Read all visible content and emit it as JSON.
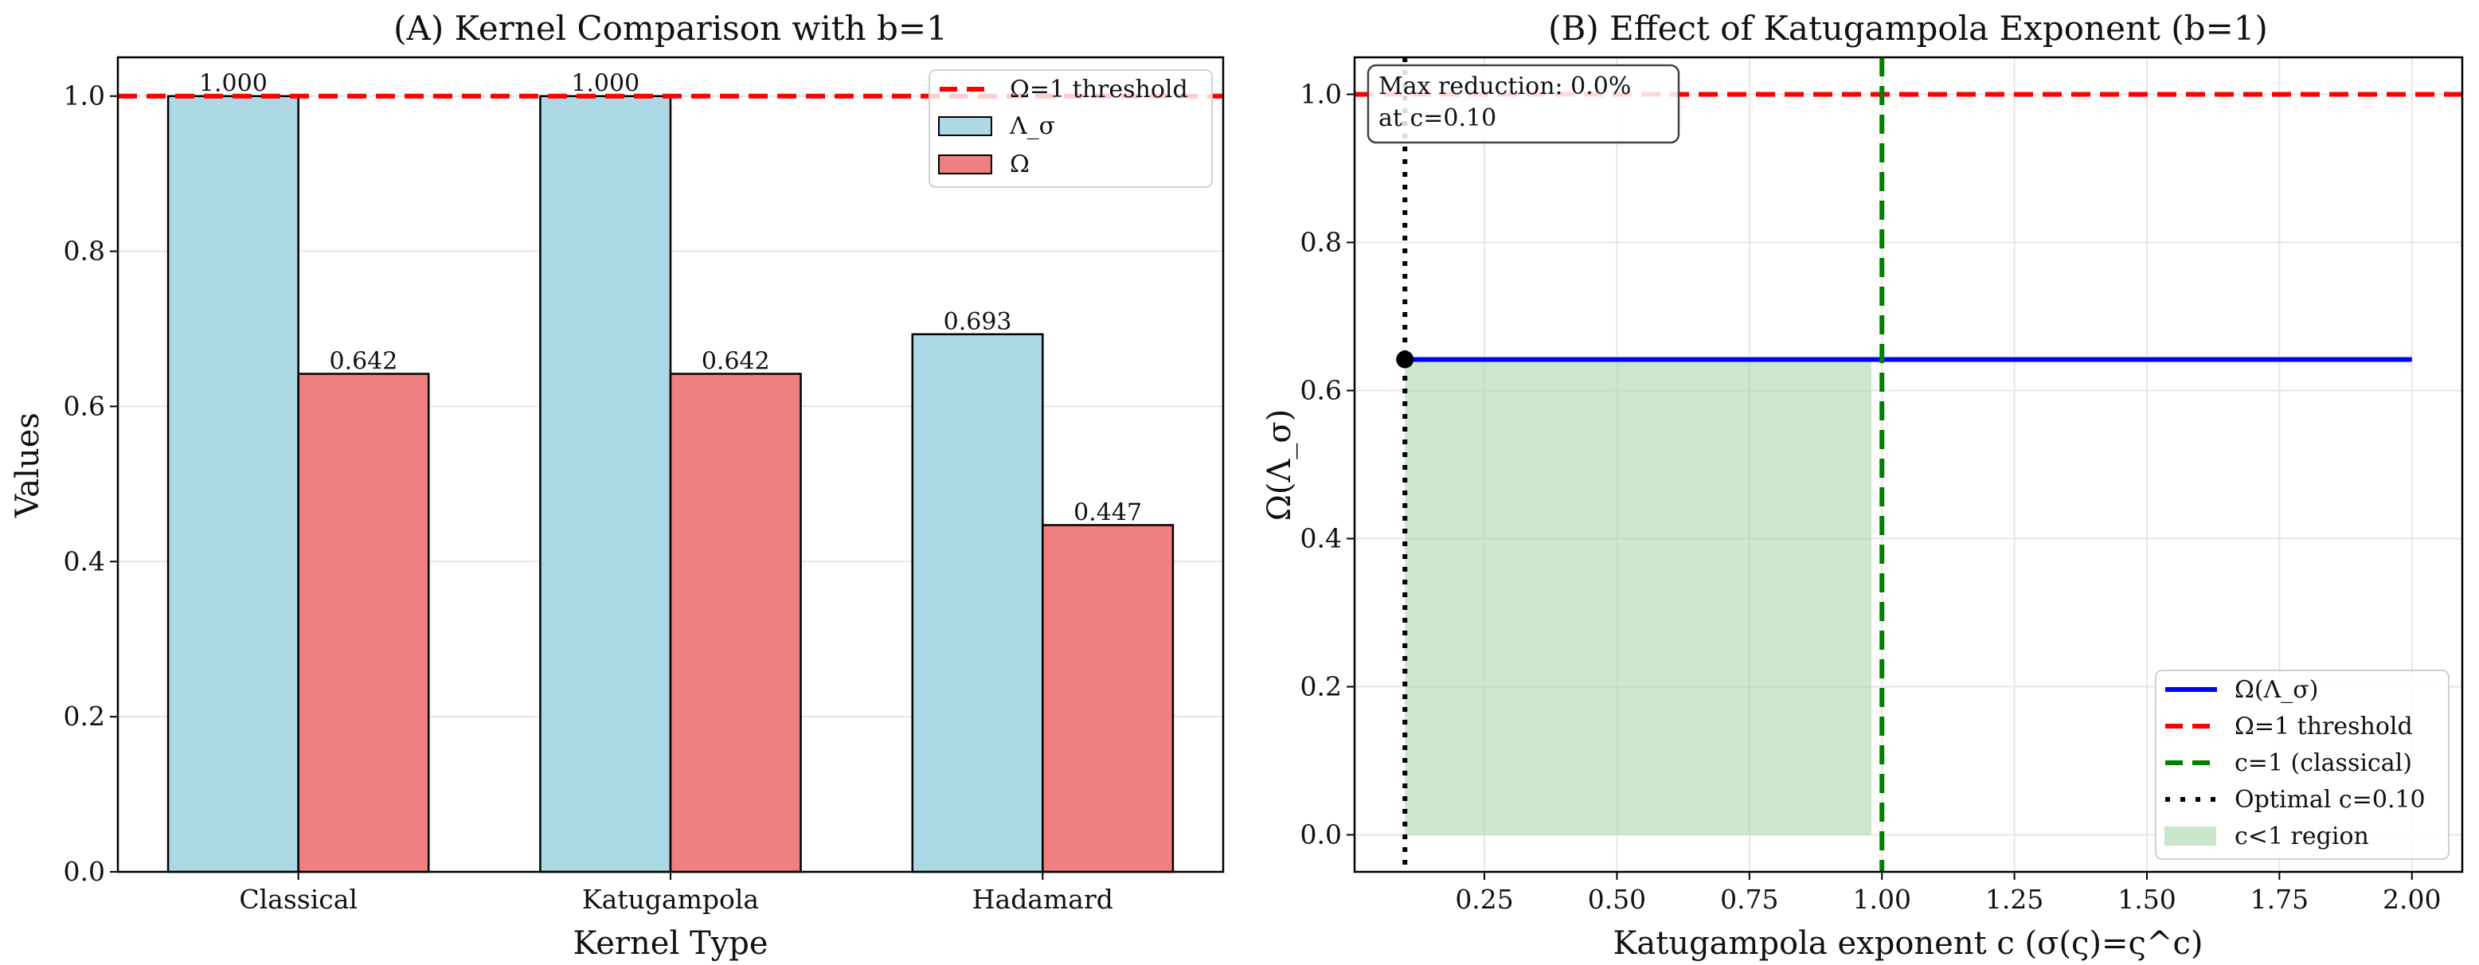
{
  "colors": {
    "lambda": "#add8e6",
    "omega": "#f08080",
    "threshold": "#ff0000",
    "curve": "#0000ff",
    "classical": "#008000",
    "optimal": "#000000",
    "region": "#a5d6a7"
  },
  "chart_data": [
    {
      "type": "bar",
      "title": "(A) Kernel Comparison with b=1",
      "xlabel": "Kernel Type",
      "ylabel": "Values",
      "categories": [
        "Classical",
        "Katugampola",
        "Hadamard"
      ],
      "series": [
        {
          "name": "Λ_σ",
          "values": [
            1.0,
            1.0,
            0.693
          ],
          "labels": [
            "1.000",
            "1.000",
            "0.693"
          ]
        },
        {
          "name": "Ω",
          "values": [
            0.642,
            0.642,
            0.447
          ],
          "labels": [
            "0.642",
            "0.642",
            "0.447"
          ]
        }
      ],
      "hline": {
        "name": "Ω=1 threshold",
        "y": 1.0
      },
      "ylim": [
        0,
        1.05
      ],
      "yticks": [
        "0.0",
        "0.2",
        "0.4",
        "0.6",
        "0.8",
        "1.0"
      ],
      "grid": "horizontal",
      "legend": {
        "placement": "top-right",
        "entries": [
          "Ω=1 threshold",
          "Λ_σ",
          "Ω"
        ]
      }
    },
    {
      "type": "line",
      "title": "(B) Effect of Katugampola Exponent (b=1)",
      "xlabel": "Katugampola exponent c (σ(ς)=ς^c)",
      "ylabel": "Ω(Λ_σ)",
      "series": [
        {
          "name": "Ω(Λ_σ)",
          "x": [
            0.1,
            2.0
          ],
          "y": [
            0.642,
            0.642
          ]
        }
      ],
      "hline": {
        "name": "Ω=1 threshold",
        "y": 1.0
      },
      "vline_classical": {
        "name": "c=1 (classical)",
        "x": 1.0
      },
      "vline_optimal": {
        "name": "Optimal c=0.10",
        "x": 0.1
      },
      "optimal_point": {
        "x": 0.1,
        "y": 0.642
      },
      "region": {
        "name": "c<1 region",
        "x": [
          0.1,
          0.98
        ],
        "y": [
          0,
          0.642
        ]
      },
      "xlim": [
        0.005,
        2.095
      ],
      "ylim": [
        -0.05,
        1.05
      ],
      "xticks": [
        "0.25",
        "0.50",
        "0.75",
        "1.00",
        "1.25",
        "1.50",
        "1.75",
        "2.00"
      ],
      "yticks": [
        "0.0",
        "0.2",
        "0.4",
        "0.6",
        "0.8",
        "1.0"
      ],
      "grid": "both",
      "annotation": {
        "line1": "Max reduction: 0.0%",
        "line2": "at c=0.10"
      },
      "legend": {
        "placement": "lower-right",
        "entries": [
          "Ω(Λ_σ)",
          "Ω=1 threshold",
          "c=1 (classical)",
          "Optimal c=0.10",
          "c<1 region"
        ]
      }
    }
  ]
}
